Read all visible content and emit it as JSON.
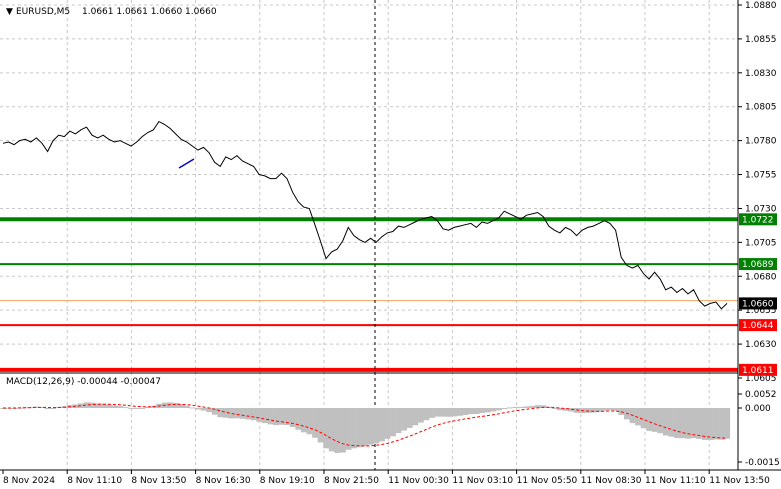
{
  "header": {
    "arrow": "▼",
    "symbol": "EURUSD,M5",
    "ohlc": "1.0661 1.0661 1.0660 1.0660"
  },
  "price_axis": [
    "1.0880",
    "1.0855",
    "1.0830",
    "1.0805",
    "1.0780",
    "1.0755",
    "1.0730",
    "1.0705",
    "1.0680",
    "1.0655",
    "1.0630",
    "1.0605"
  ],
  "time_axis": [
    "8 Nov 2024",
    "8 Nov 11:10",
    "8 Nov 13:50",
    "8 Nov 16:30",
    "8 Nov 19:10",
    "8 Nov 21:50",
    "11 Nov 00:30",
    "11 Nov 03:10",
    "11 Nov 05:50",
    "11 Nov 08:30",
    "11 Nov 11:10",
    "11 Nov 13:50"
  ],
  "levels": [
    {
      "label": "1.0722",
      "value": 1.0722,
      "color": "#008000"
    },
    {
      "label": "1.0689",
      "value": 1.0689,
      "color": "#008000"
    },
    {
      "label": "1.0644",
      "value": 1.0644,
      "color": "#ff0000"
    },
    {
      "label": "1.0611",
      "value": 1.0611,
      "color": "#ff0000"
    }
  ],
  "bid_line": {
    "value": 1.0662,
    "color": "#f4a460"
  },
  "current_price": {
    "label": "1.0660",
    "value": 1.066
  },
  "macd": {
    "title": "MACD(12,26,9) -0.00044 -0.00047",
    "axis": [
      "0.0052",
      "0.000",
      "-0.0015"
    ]
  },
  "chart_data": {
    "type": "line",
    "title": "EURUSD,M5",
    "ylim": [
      1.06,
      1.0883
    ],
    "x_index_range": [
      0,
      100
    ],
    "series": [
      {
        "values": [
          1.0778,
          1.0779,
          1.0777,
          1.078,
          1.0781,
          1.0779,
          1.0782,
          1.0778,
          1.0772,
          1.078,
          1.0784,
          1.0783,
          1.0787,
          1.0785,
          1.0788,
          1.079,
          1.0784,
          1.0782,
          1.0784,
          1.0781,
          1.0779,
          1.078,
          1.0778,
          1.0776,
          1.0779,
          1.0783,
          1.0786,
          1.0788,
          1.0794,
          1.0792,
          1.0789,
          1.0785,
          1.0781,
          1.0779,
          1.0776,
          1.0773,
          1.0775,
          1.0771,
          1.0764,
          1.0761,
          1.0768,
          1.0766,
          1.0769,
          1.0765,
          1.0763,
          1.0761,
          1.0755,
          1.0754,
          1.0752,
          1.0752,
          1.0756,
          1.0752,
          1.0742,
          1.0735,
          1.0731,
          1.073,
          1.0718,
          1.0706,
          1.0693,
          1.0698,
          1.07,
          1.0706,
          1.0716,
          1.071,
          1.0707,
          1.0705,
          1.0708,
          1.0705,
          1.0709,
          1.0712,
          1.0713,
          1.0717,
          1.0716,
          1.0718,
          1.072,
          1.0722,
          1.0723,
          1.0724,
          1.0721,
          1.0715,
          1.0714,
          1.0716,
          1.0717,
          1.0718,
          1.0719,
          1.0716,
          1.072,
          1.0719,
          1.0721,
          1.0723,
          1.0728,
          1.0726,
          1.0724,
          1.0722,
          1.0725,
          1.0726,
          1.0727,
          1.0724,
          1.0717,
          1.0714,
          1.0712,
          1.0716,
          1.0714,
          1.071,
          1.0714,
          1.0716,
          1.0717,
          1.0719,
          1.0721,
          1.0719,
          1.0714,
          1.0694,
          1.0688,
          1.0686,
          1.0688,
          1.0682,
          1.0678,
          1.0683,
          1.0678,
          1.067,
          1.0672,
          1.0668,
          1.0671,
          1.0667,
          1.067,
          1.0662,
          1.0658,
          1.066,
          1.0661,
          1.0656,
          1.066
        ]
      }
    ]
  }
}
